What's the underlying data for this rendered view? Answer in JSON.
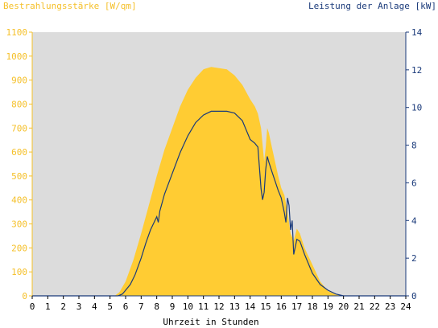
{
  "chart_data": {
    "type": "area",
    "left_axis_label": "Bestrahlungsstärke [W/qm]",
    "right_axis_label": "Leistung der Anlage [kW]",
    "xlabel": "Uhrzeit in Stunden",
    "xlim": [
      0,
      24
    ],
    "ylim_left": [
      0,
      1100
    ],
    "ylim_right": [
      0,
      14
    ],
    "x_ticks": [
      "0",
      "1",
      "2",
      "3",
      "4",
      "5",
      "6",
      "7",
      "8",
      "9",
      "10",
      "11",
      "12",
      "13",
      "14",
      "15",
      "16",
      "17",
      "18",
      "19",
      "20",
      "21",
      "22",
      "23",
      "24"
    ],
    "y_left_ticks": [
      "0",
      "100",
      "200",
      "300",
      "400",
      "500",
      "600",
      "700",
      "800",
      "900",
      "1000",
      "1100"
    ],
    "y_right_ticks": [
      "0",
      "2",
      "4",
      "6",
      "8",
      "10",
      "12",
      "14"
    ],
    "grid": false,
    "colors": {
      "plot_background": "#dcdcdc",
      "irradiance_fill": "#ffcc33",
      "power_line": "#1a3a7a",
      "left_axis_text": "#f5c02a",
      "right_axis_text": "#1a3a7a"
    },
    "series": [
      {
        "axis": "left",
        "style": "area",
        "x": [
          0,
          5.3,
          5.6,
          6.0,
          6.5,
          7.0,
          7.5,
          8.0,
          8.5,
          9.0,
          9.5,
          10.0,
          10.5,
          11.0,
          11.5,
          12.0,
          12.5,
          13.0,
          13.5,
          14.0,
          14.3,
          14.5,
          14.7,
          14.9,
          15.0,
          15.1,
          15.2,
          15.4,
          15.6,
          15.8,
          16.0,
          16.2,
          16.4,
          16.6,
          16.8,
          17.0,
          17.2,
          17.5,
          18.0,
          18.5,
          19.0,
          19.5,
          20.0,
          24
        ],
        "y": [
          0,
          0,
          15,
          60,
          150,
          260,
          380,
          500,
          610,
          700,
          790,
          860,
          910,
          945,
          955,
          950,
          945,
          920,
          880,
          820,
          790,
          760,
          700,
          560,
          620,
          700,
          680,
          620,
          560,
          500,
          450,
          420,
          350,
          260,
          230,
          280,
          260,
          200,
          130,
          60,
          20,
          5,
          0,
          0
        ]
      },
      {
        "axis": "right",
        "style": "line",
        "x": [
          0,
          5.5,
          5.8,
          6.0,
          6.3,
          6.6,
          7.0,
          7.3,
          7.6,
          8.0,
          8.1,
          8.2,
          8.5,
          9.0,
          9.5,
          10.0,
          10.5,
          11.0,
          11.5,
          12.0,
          12.5,
          13.0,
          13.5,
          14.0,
          14.3,
          14.5,
          14.7,
          14.8,
          14.9,
          15.0,
          15.1,
          15.2,
          15.4,
          15.6,
          15.8,
          16.0,
          16.2,
          16.3,
          16.4,
          16.5,
          16.6,
          16.7,
          16.8,
          17.0,
          17.2,
          17.5,
          18.0,
          18.5,
          19.0,
          19.5,
          20.0,
          24
        ],
        "y": [
          0,
          0,
          0.1,
          0.3,
          0.6,
          1.1,
          2.0,
          2.8,
          3.5,
          4.2,
          3.9,
          4.5,
          5.4,
          6.5,
          7.6,
          8.5,
          9.2,
          9.6,
          9.8,
          9.8,
          9.8,
          9.7,
          9.3,
          8.3,
          8.1,
          7.9,
          5.7,
          5.1,
          5.5,
          6.7,
          7.4,
          7.1,
          6.6,
          6.1,
          5.6,
          5.2,
          4.4,
          3.9,
          5.2,
          4.8,
          3.5,
          4.0,
          2.2,
          3.0,
          2.9,
          2.2,
          1.2,
          0.6,
          0.3,
          0.1,
          0,
          0
        ]
      }
    ]
  }
}
